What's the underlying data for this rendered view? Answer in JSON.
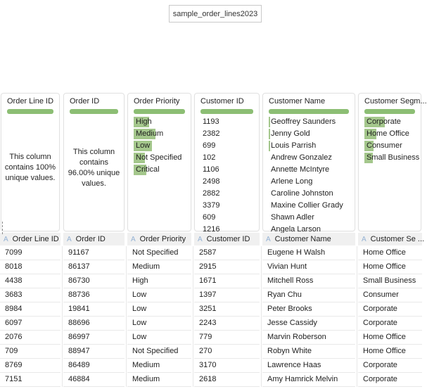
{
  "flow_node": {
    "label": "sample_order_lines2023"
  },
  "colors": {
    "accent_green": "#8cbe74",
    "highlight_green": "#a4c78c",
    "type_icon_blue": "#93b1d3",
    "header_bg": "#f0f0f0"
  },
  "profile_cards": [
    {
      "title": "Order Line ID",
      "summary": "This column contains 100% unique values.",
      "values": []
    },
    {
      "title": "Order ID",
      "summary": "This column contains 96.00% unique values.",
      "values": []
    },
    {
      "title": "Order Priority",
      "values": [
        {
          "label": "High",
          "bar": 22
        },
        {
          "label": "Medium",
          "bar": 31
        },
        {
          "label": "Low",
          "bar": 26
        },
        {
          "label": "Not Specified",
          "bar": 16
        },
        {
          "label": "Critical",
          "bar": 18
        }
      ]
    },
    {
      "title": "Customer ID",
      "values": [
        {
          "label": "1193",
          "bar": 0
        },
        {
          "label": "2382",
          "bar": 0
        },
        {
          "label": "699",
          "bar": 0
        },
        {
          "label": "102",
          "bar": 0
        },
        {
          "label": "1106",
          "bar": 0
        },
        {
          "label": "2498",
          "bar": 0
        },
        {
          "label": "2882",
          "bar": 0
        },
        {
          "label": "3379",
          "bar": 0
        },
        {
          "label": "609",
          "bar": 0
        },
        {
          "label": "1216",
          "bar": 0
        }
      ]
    },
    {
      "title": "Customer Name",
      "values": [
        {
          "label": "Geoffrey Saunders",
          "bar": 2
        },
        {
          "label": "Jenny Gold",
          "bar": 2
        },
        {
          "label": "Louis Parrish",
          "bar": 2
        },
        {
          "label": "Andrew Gonzalez",
          "bar": 0
        },
        {
          "label": "Annette McIntyre",
          "bar": 0
        },
        {
          "label": "Arlene Long",
          "bar": 0
        },
        {
          "label": "Caroline Johnston",
          "bar": 0
        },
        {
          "label": "Maxine Collier Grady",
          "bar": 0
        },
        {
          "label": "Shawn Adler",
          "bar": 0
        },
        {
          "label": "Angela Larson",
          "bar": 0
        }
      ]
    },
    {
      "title": "Customer Segm...",
      "values": [
        {
          "label": "Corporate",
          "bar": 29
        },
        {
          "label": "Home Office",
          "bar": 17
        },
        {
          "label": "Consumer",
          "bar": 13
        },
        {
          "label": "Small Business",
          "bar": 12
        }
      ]
    }
  ],
  "grid": {
    "columns": [
      {
        "type_icon": "A",
        "label": "Order Line ID"
      },
      {
        "type_icon": "A",
        "label": "Order ID"
      },
      {
        "type_icon": "A",
        "label": "Order Priority"
      },
      {
        "type_icon": "A",
        "label": "Customer ID"
      },
      {
        "type_icon": "A",
        "label": "Customer Name"
      },
      {
        "type_icon": "A",
        "label": "Customer Se ..."
      }
    ],
    "rows": [
      [
        "7099",
        "91167",
        "Not Specified",
        "2587",
        "Eugene H Walsh",
        "Home Office"
      ],
      [
        "8018",
        "86137",
        "Medium",
        "2915",
        "Vivian Hunt",
        "Home Office"
      ],
      [
        "4438",
        "86730",
        "High",
        "1671",
        "Mitchell Ross",
        "Small Business"
      ],
      [
        "3683",
        "88736",
        "Low",
        "1397",
        "Ryan Chu",
        "Consumer"
      ],
      [
        "8984",
        "19841",
        "Low",
        "3251",
        "Peter Brooks",
        "Corporate"
      ],
      [
        "6097",
        "88696",
        "Low",
        "2243",
        "Jesse Cassidy",
        "Corporate"
      ],
      [
        "2076",
        "86997",
        "Low",
        "779",
        "Marvin Roberson",
        "Home Office"
      ],
      [
        "709",
        "88947",
        "Not Specified",
        "270",
        "Robyn White",
        "Home Office"
      ],
      [
        "8769",
        "86489",
        "Medium",
        "3170",
        "Lawrence Haas",
        "Corporate"
      ],
      [
        "7151",
        "46884",
        "Medium",
        "2618",
        "Amy Hamrick Melvin",
        "Corporate"
      ]
    ]
  }
}
